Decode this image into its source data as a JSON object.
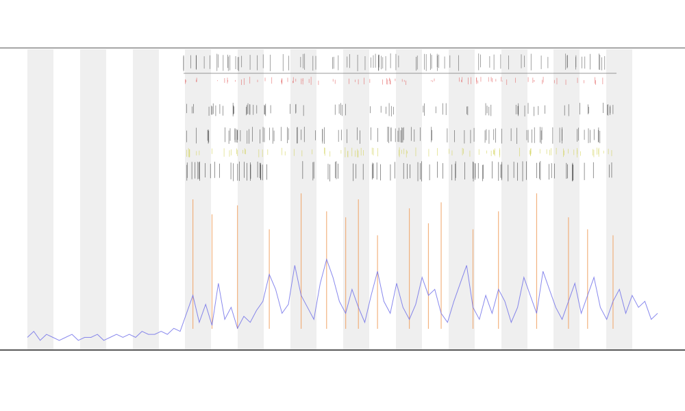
{
  "chart_data": {
    "type": "line",
    "ylim": [
      0,
      100
    ],
    "series": [
      {
        "color": "#6a6ae8",
        "values": [
          4,
          6,
          3,
          5,
          4,
          3,
          4,
          5,
          3,
          4,
          4,
          5,
          3,
          4,
          5,
          4,
          5,
          4,
          6,
          5,
          5,
          6,
          5,
          7,
          6,
          12,
          18,
          9,
          15,
          8,
          22,
          10,
          14,
          7,
          11,
          9,
          13,
          16,
          25,
          20,
          12,
          15,
          28,
          18,
          14,
          10,
          22,
          30,
          24,
          16,
          12,
          20,
          14,
          9,
          18,
          26,
          16,
          12,
          22,
          14,
          10,
          15,
          24,
          18,
          20,
          12,
          9,
          16,
          22,
          28,
          14,
          10,
          18,
          12,
          20,
          16,
          9,
          14,
          24,
          18,
          12,
          26,
          20,
          14,
          10,
          16,
          22,
          12,
          18,
          24,
          14,
          10,
          16,
          20,
          12,
          18,
          14,
          16,
          10,
          12
        ]
      },
      {
        "color": "#f0a060",
        "values": [
          null,
          null,
          null,
          null,
          null,
          null,
          null,
          null,
          null,
          null,
          null,
          null,
          null,
          null,
          null,
          null,
          null,
          null,
          null,
          null,
          null,
          null,
          null,
          null,
          null,
          null,
          50,
          null,
          null,
          45,
          null,
          null,
          null,
          48,
          null,
          null,
          null,
          null,
          40,
          null,
          null,
          null,
          null,
          52,
          null,
          null,
          null,
          46,
          null,
          null,
          44,
          null,
          50,
          null,
          null,
          38,
          null,
          null,
          null,
          null,
          47,
          null,
          null,
          42,
          null,
          49,
          null,
          null,
          null,
          null,
          40,
          null,
          null,
          null,
          46,
          null,
          null,
          null,
          null,
          null,
          52,
          null,
          null,
          null,
          null,
          44,
          null,
          null,
          40,
          null,
          null,
          null,
          38,
          null,
          null,
          null,
          null,
          null,
          null,
          null
        ]
      }
    ]
  }
}
